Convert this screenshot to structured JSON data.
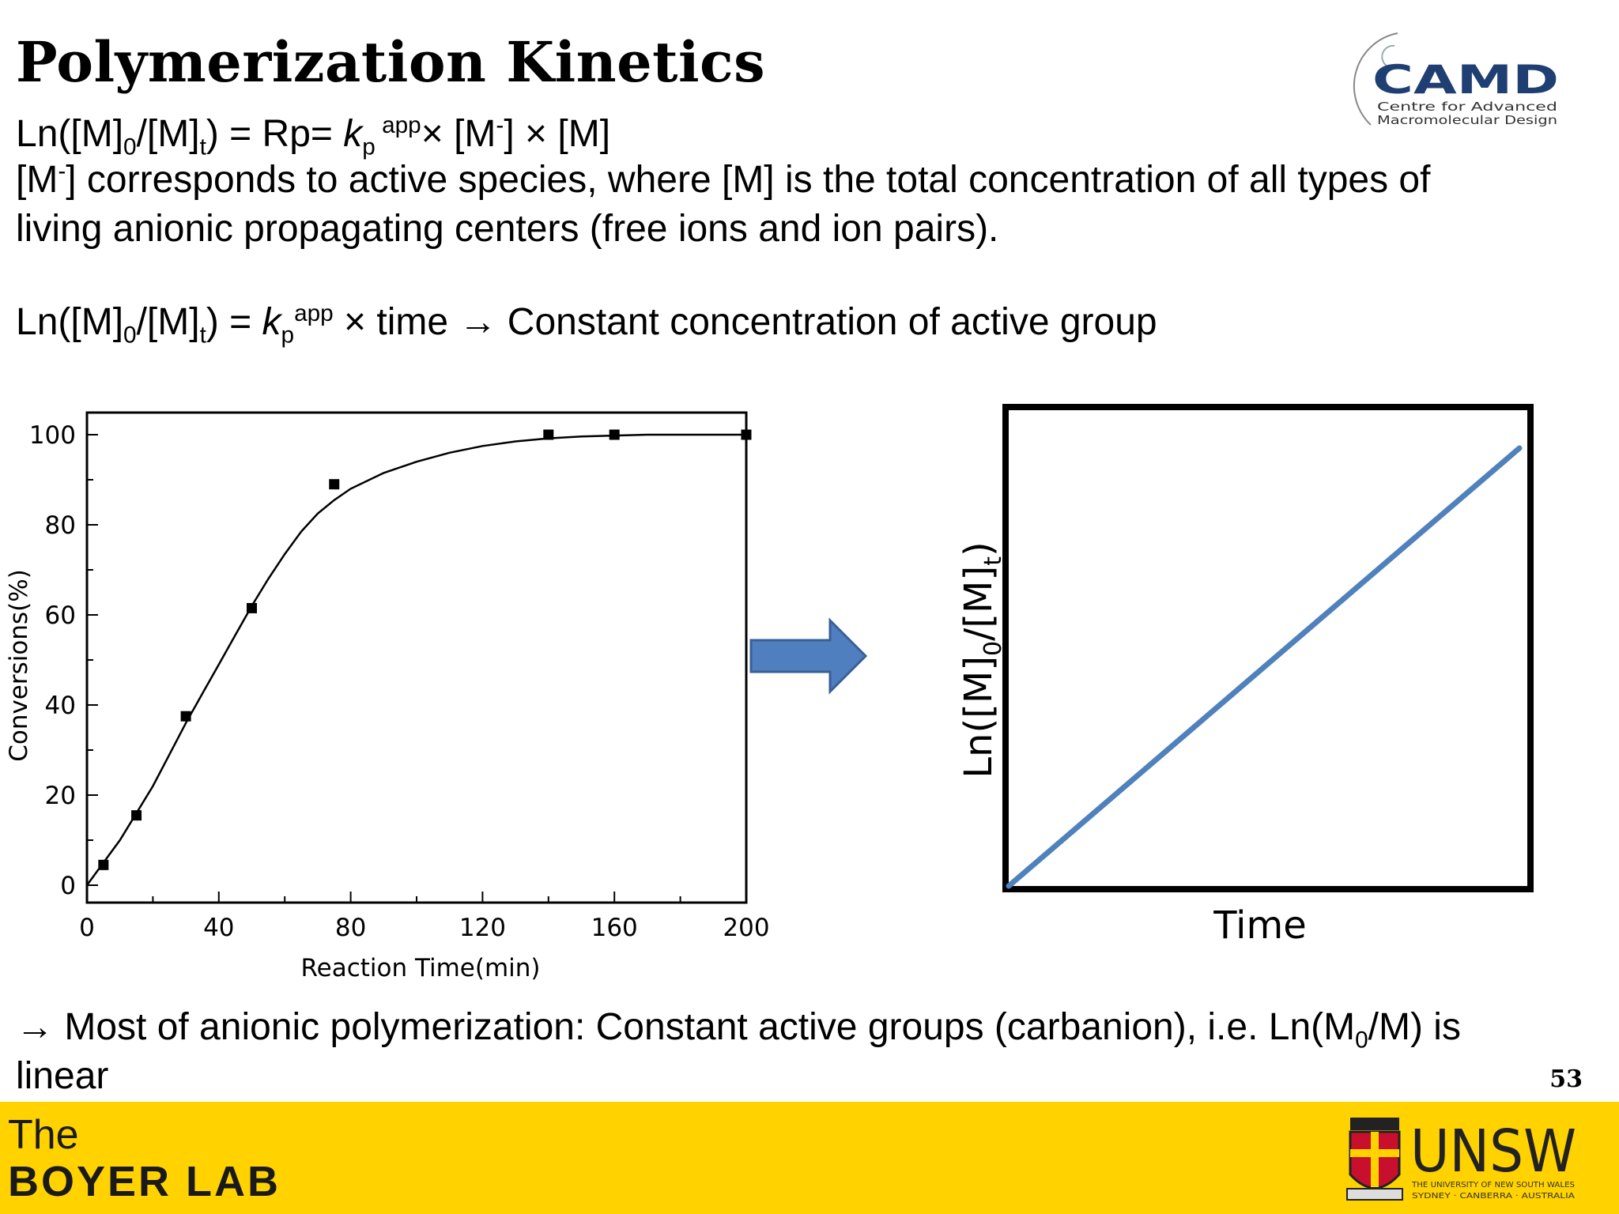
{
  "slide": {
    "title": "Polymerization Kinetics",
    "eq1": {
      "prefix": "Ln([M]",
      "sub0": "0",
      "mid": "/[M]",
      "subt": "t",
      "after": ") = Rp= ",
      "k": "k",
      "kp_sub": "p",
      "kp_sup": " app",
      "rest1": "× [M",
      "minus": "-",
      "rest2": "] × [M]"
    },
    "desc_line1": {
      "open": "[M",
      "minus": "-",
      "text": "] corresponds to active species, where [M] is the total concentration of all types of"
    },
    "desc_line2": "living anionic propagating centers (free ions and ion pairs).",
    "eq2": {
      "prefix": "Ln([M]",
      "sub0": "0",
      "mid": "/[M]",
      "subt": "t",
      "after": ") = ",
      "k": "k",
      "kp_sub": "p",
      "kp_sup": "app",
      "rest": " × time → Constant concentration of active group"
    },
    "bottom_line1": {
      "pre": "→ Most of anionic polymerization: Constant active groups (carbanion), i.e. Ln(M",
      "sub": "0",
      "post": "/M) is"
    },
    "bottom_line2": "linear",
    "page_number": "53"
  },
  "footer": {
    "lab_the": "The",
    "lab_name": "BOYER LAB",
    "unsw_logo": {
      "text": "UNSW",
      "small1": "THE UNIVERSITY OF NEW SOUTH WALES",
      "small2": "SYDNEY · CANBERRA · AUSTRALIA"
    }
  },
  "camd_logo": {
    "text": "CAMD",
    "line1": "Centre for Advanced",
    "line2": "Macromolecular Design",
    "color": "#1F3F73"
  },
  "arrow": {
    "color": "#4F7FBF"
  },
  "chart_data": [
    {
      "type": "scatter",
      "xlabel": "Reaction Time(min)",
      "ylabel": "Conversions(%)",
      "xlim": [
        0,
        200
      ],
      "ylim": [
        0,
        100
      ],
      "xticks": [
        "0",
        "40",
        "80",
        "120",
        "160",
        "200"
      ],
      "yticks": [
        "0",
        "20",
        "40",
        "60",
        "80",
        "100"
      ],
      "grid": false,
      "points": [
        {
          "x": 5,
          "y": 4.5
        },
        {
          "x": 15,
          "y": 15.5
        },
        {
          "x": 30,
          "y": 37.5
        },
        {
          "x": 50,
          "y": 61.5
        },
        {
          "x": 75,
          "y": 89
        },
        {
          "x": 140,
          "y": 100
        },
        {
          "x": 160,
          "y": 100
        },
        {
          "x": 200,
          "y": 100
        }
      ],
      "fit_curve": {
        "x": [
          0,
          5,
          10,
          15,
          20,
          25,
          30,
          35,
          40,
          45,
          50,
          55,
          60,
          65,
          70,
          75,
          80,
          90,
          100,
          110,
          120,
          130,
          140,
          150,
          160,
          170,
          180,
          190,
          200
        ],
        "y": [
          0,
          5,
          10,
          16,
          22,
          29,
          36,
          42.5,
          49,
          55.5,
          62,
          68,
          73.5,
          78.5,
          82.5,
          85.5,
          88,
          91.5,
          94,
          96,
          97.5,
          98.5,
          99.2,
          99.6,
          99.8,
          100,
          100,
          100,
          100
        ]
      }
    },
    {
      "type": "line",
      "xlabel": "Time",
      "ylabel": "Ln([M]0/[M]t)",
      "ylabel_parts": {
        "pre": "Ln([M]",
        "sub0": "0",
        "mid": "/[M]",
        "subt": "t",
        "post": ")"
      },
      "series": [
        {
          "x": [
            0,
            1
          ],
          "y": [
            0,
            1
          ],
          "color": "#4F81BD"
        }
      ],
      "grid": false
    }
  ]
}
